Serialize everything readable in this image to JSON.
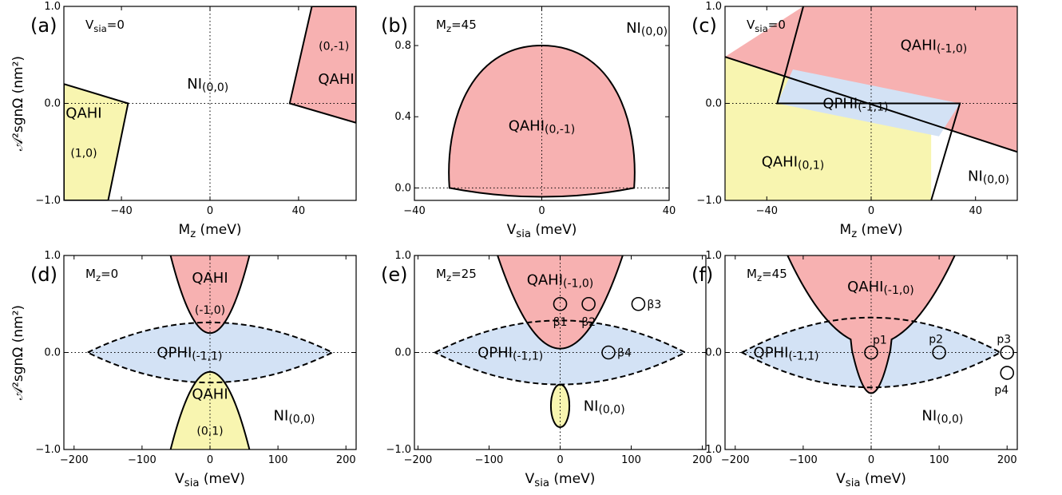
{
  "figure": {
    "colors": {
      "qahi_red": "#f7b1b1",
      "qahi_yellow": "#f8f5b0",
      "qphi_blue": "#d3e2f5",
      "ni": "#ffffff"
    },
    "y_label_left": "𝒜²sgnΩ (nm²)"
  },
  "chart_data": [
    {
      "id": "a",
      "type": "area",
      "panel_label": "(a)",
      "info_text": "Vsia=0",
      "info": {
        "base": "V",
        "sub": "sia",
        "rest": "=0"
      },
      "xlabel": {
        "base": "M",
        "sub": "z",
        "unit": " (meV)"
      },
      "xlim": [
        -66,
        66
      ],
      "ylim": [
        -1.0,
        1.0
      ],
      "xticks": [
        -40,
        0,
        40
      ],
      "xtick_labels": [
        "−40",
        "0",
        "40"
      ],
      "yticks": [
        -1.0,
        0.0,
        1.0
      ],
      "ytick_labels": [
        "−1.0",
        "0.0",
        "1.0"
      ],
      "regions": [
        {
          "name": "QAHI(1,0)",
          "color": "yellow",
          "points": [
            [
              -66,
              0.2
            ],
            [
              -37,
              0.0
            ],
            [
              -46,
              -1.0
            ],
            [
              -66,
              -1.0
            ]
          ]
        },
        {
          "name": "QAHI(0,-1)",
          "color": "red",
          "points": [
            [
              36,
              0.0
            ],
            [
              66,
              -0.2
            ],
            [
              66,
              1.0
            ],
            [
              46,
              1.0
            ]
          ]
        }
      ],
      "labels": [
        {
          "text": "QAHI",
          "x": -57,
          "y": -0.1
        },
        {
          "text": "(1,0)",
          "x": -57,
          "y": -0.5,
          "small": true
        },
        {
          "text": "QAHI",
          "x": 57,
          "y": 0.25
        },
        {
          "text": "(0,-1)",
          "x": 56,
          "y": 0.6,
          "small": true
        },
        {
          "text": "NI",
          "x": -1,
          "y": 0.2,
          "sub": "(0,0)"
        }
      ],
      "markers": []
    },
    {
      "id": "b",
      "type": "area",
      "panel_label": "(b)",
      "info_text": "Mz=45",
      "info": {
        "base": "M",
        "sub": "z",
        "rest": "=45"
      },
      "xlabel": {
        "base": "V",
        "sub": "sia",
        "unit": " (meV)"
      },
      "xlim": [
        -40,
        40
      ],
      "ylim": [
        -0.07,
        1.02
      ],
      "xticks": [
        -40,
        0,
        40
      ],
      "xtick_labels": [
        "−40",
        "0",
        "40"
      ],
      "yticks": [
        0.0,
        0.4,
        0.8
      ],
      "ytick_labels": [
        "0.0",
        "0.4",
        "0.8"
      ],
      "regions": [
        {
          "name": "QAHI(0,-1)",
          "color": "red",
          "shape": "dome",
          "x_edge": 29,
          "y_bottom_center": -0.05,
          "y_bottom_edge": 0.0,
          "y_top": 0.8,
          "y_side": 0.25
        }
      ],
      "labels": [
        {
          "text": "QAHI",
          "x": 0,
          "y": 0.35,
          "sub": "(0,-1)"
        },
        {
          "text": "NI",
          "x": 33,
          "y": 0.9,
          "sub": "(0,0)"
        }
      ],
      "markers": []
    },
    {
      "id": "c",
      "type": "area",
      "panel_label": "(c)",
      "info_text": "Vsia=0",
      "info": {
        "base": "V",
        "sub": "sia",
        "rest": "=0"
      },
      "xlabel": {
        "base": "M",
        "sub": "z",
        "unit": " (meV)"
      },
      "xlim": [
        -56,
        56
      ],
      "ylim": [
        -1.0,
        1.0
      ],
      "xticks": [
        -40,
        0,
        40
      ],
      "xtick_labels": [
        "−40",
        "0",
        "40"
      ],
      "yticks": [
        -1.0,
        0.0,
        1.0
      ],
      "ytick_labels": [
        "−1.0",
        "0.0",
        "1.0"
      ],
      "regions": [
        {
          "name": "QAHI(-1,0)",
          "color": "red",
          "points": [
            [
              -26,
              1.0
            ],
            [
              56,
              1.0
            ],
            [
              56,
              -0.5
            ],
            [
              -56,
              0.48
            ]
          ]
        },
        {
          "name": "QAHI(0,1)",
          "color": "yellow",
          "points": [
            [
              -56,
              0.48
            ],
            [
              23,
              -0.22
            ],
            [
              23,
              -1.0
            ],
            [
              -56,
              -1.0
            ]
          ]
        },
        {
          "name": "QPHI(-1,1)",
          "color": "blue",
          "points": [
            [
              -30,
              0.35
            ],
            [
              34,
              0.0
            ],
            [
              26,
              -0.34
            ],
            [
              -36,
              0.0
            ]
          ]
        }
      ],
      "lines": [
        [
          [
            -56,
            0.48
          ],
          [
            56,
            -0.5
          ]
        ],
        [
          [
            -26,
            1.0
          ],
          [
            -36,
            0.0
          ],
          [
            34,
            0.0
          ],
          [
            23,
            -1.0
          ]
        ]
      ],
      "labels": [
        {
          "text": "QAHI",
          "x": 24,
          "y": 0.6,
          "sub": "(-1,0)"
        },
        {
          "text": "QPHI",
          "x": -6,
          "y": 0.0,
          "sub": "(-1,1)"
        },
        {
          "text": "QAHI",
          "x": -30,
          "y": -0.6,
          "sub": "(0,1)"
        },
        {
          "text": "NI",
          "x": 45,
          "y": -0.75,
          "sub": "(0,0)"
        }
      ],
      "markers": []
    },
    {
      "id": "d",
      "type": "area",
      "panel_label": "(d)",
      "info_text": "Mz=0",
      "info": {
        "base": "M",
        "sub": "z",
        "rest": "=0"
      },
      "xlabel": {
        "base": "V",
        "sub": "sia",
        "unit": " (meV)"
      },
      "xlim": [
        -215,
        215
      ],
      "ylim": [
        -1.0,
        1.0
      ],
      "xticks": [
        -200,
        -100,
        0,
        100,
        200
      ],
      "xtick_labels": [
        "−200",
        "−100",
        "0",
        "100",
        "200"
      ],
      "yticks": [
        -1.0,
        0.0,
        1.0
      ],
      "ytick_labels": [
        "−1.0",
        "0.0",
        "1.0"
      ],
      "lens": {
        "x_half": 180,
        "y_half": 0.31
      },
      "parabolas": [
        {
          "color": "red",
          "vertex": 0.2,
          "x_at_edge": 58,
          "edge": 1.0
        },
        {
          "color": "yellow",
          "vertex": -0.2,
          "x_at_edge": 58,
          "edge": -1.0
        }
      ],
      "labels": [
        {
          "text": "QAHI",
          "x": 0,
          "y": 0.77
        },
        {
          "text": "(-1,0)",
          "x": 0,
          "y": 0.45,
          "small": true
        },
        {
          "text": "QPHI",
          "x": -30,
          "y": 0.0,
          "sub": "(-1,1)"
        },
        {
          "text": "QAHI",
          "x": 0,
          "y": -0.43
        },
        {
          "text": "(0,1)",
          "x": 0,
          "y": -0.8,
          "small": true
        },
        {
          "text": "NI",
          "x": 124,
          "y": -0.65,
          "sub": "(0,0)"
        }
      ],
      "markers": []
    },
    {
      "id": "e",
      "type": "area",
      "panel_label": "(e)",
      "info_text": "Mz=25",
      "info": {
        "base": "M",
        "sub": "z",
        "rest": "=25"
      },
      "xlabel": {
        "base": "V",
        "sub": "sia",
        "unit": " (meV)"
      },
      "xlim": [
        -205,
        205
      ],
      "ylim": [
        -1.0,
        1.0
      ],
      "xticks": [
        -200,
        -100,
        0,
        100,
        200
      ],
      "xtick_labels": [
        "−200",
        "−100",
        "0",
        "100",
        "200"
      ],
      "yticks": [
        -1.0,
        0.0,
        1.0
      ],
      "ytick_labels": [
        "−1.0",
        "0.0",
        "1.0"
      ],
      "lens": {
        "x_half": 176,
        "y_half": 0.33
      },
      "parabolas": [
        {
          "color": "red",
          "vertex": 0.04,
          "x_at_edge": 88,
          "edge": 1.0
        }
      ],
      "ellipse": {
        "color": "yellow",
        "cx": 0,
        "cy": -0.55,
        "rx": 13,
        "ry": 0.22
      },
      "labels": [
        {
          "text": "QAHI",
          "x": 0,
          "y": 0.75,
          "sub": "(-1,0)"
        },
        {
          "text": "QPHI",
          "x": -70,
          "y": 0.0,
          "sub": "(-1,1)"
        },
        {
          "text": "NI",
          "x": 62,
          "y": -0.55,
          "sub": "(0,0)"
        }
      ],
      "markers": [
        {
          "label": "β1",
          "x": 0,
          "y": 0.5,
          "label_pos": "below"
        },
        {
          "label": "β2",
          "x": 40,
          "y": 0.5,
          "label_pos": "below"
        },
        {
          "label": "β3",
          "x": 110,
          "y": 0.5,
          "label_pos": "right"
        },
        {
          "label": "β4",
          "x": 68,
          "y": 0.0,
          "label_pos": "right"
        }
      ]
    },
    {
      "id": "f",
      "type": "area",
      "panel_label": "(f)",
      "info_text": "Mz=45",
      "info": {
        "base": "M",
        "sub": "z",
        "rest": "=45"
      },
      "xlabel": {
        "base": "V",
        "sub": "sia",
        "unit": " (meV)"
      },
      "xlim": [
        -215,
        215
      ],
      "ylim": [
        -1.0,
        1.0
      ],
      "xticks": [
        -200,
        -100,
        0,
        100,
        200
      ],
      "xtick_labels": [
        "−200",
        "−100",
        "0",
        "100",
        "200"
      ],
      "yticks": [
        -1.0,
        0.0,
        1.0
      ],
      "ytick_labels": [
        "−1.0",
        "0.0",
        "1.0"
      ],
      "lens": {
        "x_half": 190,
        "y_half": 0.36
      },
      "parabolas": [
        {
          "color": "red",
          "vertex": 0.08,
          "x_at_edge": 123,
          "edge": 1.0,
          "tail": true
        }
      ],
      "labels": [
        {
          "text": "QAHI",
          "x": 14,
          "y": 0.68,
          "sub": "(-1,0)"
        },
        {
          "text": "QPHI",
          "x": -125,
          "y": 0.0,
          "sub": "(-1,1)"
        },
        {
          "text": "NI",
          "x": 105,
          "y": -0.65,
          "sub": "(0,0)"
        }
      ],
      "markers": [
        {
          "label": "p1",
          "x": 0,
          "y": 0.0,
          "label_pos": "right-up"
        },
        {
          "label": "p2",
          "x": 100,
          "y": 0.0,
          "label_pos": "up"
        },
        {
          "label": "p3",
          "x": 200,
          "y": 0.0,
          "label_pos": "up"
        },
        {
          "label": "p4",
          "x": 200,
          "y": -0.21,
          "label_pos": "down"
        }
      ]
    }
  ]
}
